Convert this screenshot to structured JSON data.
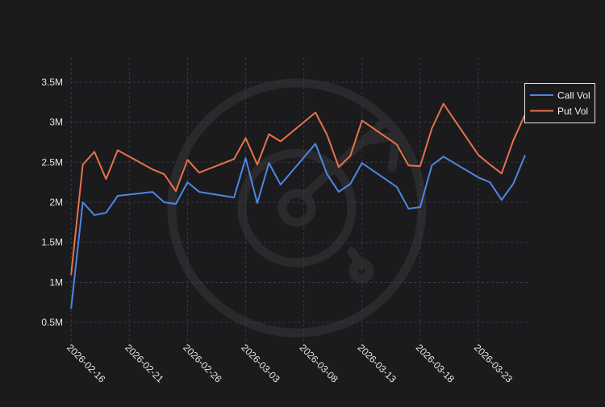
{
  "colors": {
    "background": "#1b1b1e",
    "grid": "#3a3a3f",
    "text": "#e6e6e6",
    "watermark": "#2a2a2d",
    "legend_border": "#e6e6e6",
    "legend_bg": "#1b1b1e"
  },
  "watermark": {
    "icon": "radar-logo-icon"
  },
  "chart_data": {
    "type": "line",
    "title": "",
    "xlabel": "",
    "ylabel": "",
    "ylim": [
      0.2,
      3.8
    ],
    "y_ticks": [
      0.5,
      1,
      1.5,
      2,
      2.5,
      3,
      3.5
    ],
    "y_tick_labels": [
      "0.5M",
      "1M",
      "1.5M",
      "2M",
      "2.5M",
      "3M",
      "3.5M"
    ],
    "x_range": [
      -0.5,
      39.3
    ],
    "x_ticks": [
      0,
      5,
      10,
      15,
      20,
      25,
      30,
      35
    ],
    "x_tick_labels": [
      "2026-02-16",
      "2026-02-21",
      "2026-02-26",
      "2026-03-03",
      "2026-03-08",
      "2026-03-13",
      "2026-03-18",
      "2026-03-23"
    ],
    "grid": true,
    "legend_position": "top-right",
    "series": [
      {
        "name": "Call Vol",
        "color": "#4f86e3",
        "x": [
          0,
          1,
          2,
          3,
          4,
          7,
          8,
          9,
          10,
          11,
          14,
          15,
          16,
          17,
          18,
          21,
          22,
          23,
          24,
          25,
          28,
          29,
          30,
          31,
          32,
          35,
          36,
          37,
          38,
          39
        ],
        "values": [
          0.68,
          2.0,
          1.84,
          1.87,
          2.08,
          2.13,
          2.0,
          1.98,
          2.25,
          2.13,
          2.06,
          2.55,
          1.99,
          2.49,
          2.22,
          2.73,
          2.35,
          2.13,
          2.23,
          2.49,
          2.19,
          1.92,
          1.94,
          2.46,
          2.57,
          2.31,
          2.25,
          2.03,
          2.23,
          2.58
        ]
      },
      {
        "name": "Put Vol",
        "color": "#e8724a",
        "x": [
          0,
          1,
          2,
          3,
          4,
          7,
          8,
          9,
          10,
          11,
          14,
          15,
          16,
          17,
          18,
          21,
          22,
          23,
          24,
          25,
          28,
          29,
          30,
          31,
          32,
          35,
          36,
          37,
          38,
          39
        ],
        "values": [
          1.1,
          2.47,
          2.63,
          2.29,
          2.65,
          2.41,
          2.35,
          2.14,
          2.53,
          2.37,
          2.54,
          2.8,
          2.47,
          2.85,
          2.76,
          3.12,
          2.84,
          2.44,
          2.58,
          3.02,
          2.72,
          2.46,
          2.45,
          2.92,
          3.23,
          2.59,
          2.47,
          2.36,
          2.77,
          3.09
        ]
      }
    ]
  }
}
